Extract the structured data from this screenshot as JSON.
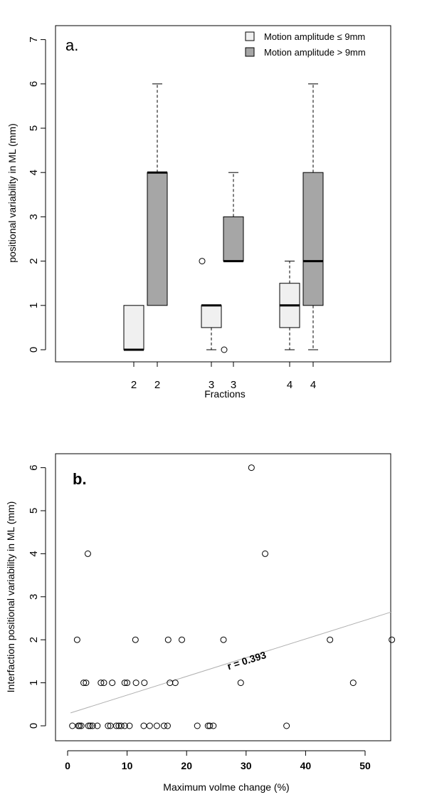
{
  "chart_data": [
    {
      "type": "box",
      "panel_label": "a.",
      "ylabel": "positional variability in ML (mm)",
      "xlabel": "Fractions",
      "ylim": [
        0,
        7
      ],
      "yticks": [
        "0",
        "1",
        "2",
        "3",
        "4",
        "5",
        "6",
        "7"
      ],
      "legend_position": "top-right",
      "series": [
        {
          "name": "Motion amplitude ≤ 9mm",
          "color": "#f0f0f0"
        },
        {
          "name": "Motion amplitude > 9mm",
          "color": "#a6a6a6"
        }
      ],
      "boxes": [
        {
          "label": "2",
          "series": 0,
          "whisker_low": 0,
          "q1": 0,
          "median": 0,
          "q3": 1,
          "whisker_high": 1,
          "outliers": []
        },
        {
          "label": "2",
          "series": 1,
          "whisker_low": 1,
          "q1": 1,
          "median": 4,
          "q3": 4,
          "whisker_high": 6,
          "outliers": []
        },
        {
          "label": "3",
          "series": 0,
          "whisker_low": 0,
          "q1": 0.5,
          "median": 1,
          "q3": 1,
          "whisker_high": 1,
          "outliers": [
            2
          ]
        },
        {
          "label": "3",
          "series": 1,
          "whisker_low": 2,
          "q1": 2,
          "median": 2,
          "q3": 3,
          "whisker_high": 4,
          "outliers": [
            0
          ]
        },
        {
          "label": "4",
          "series": 0,
          "whisker_low": 0,
          "q1": 0.5,
          "median": 1,
          "q3": 1.5,
          "whisker_high": 2,
          "outliers": []
        },
        {
          "label": "4",
          "series": 1,
          "whisker_low": 0,
          "q1": 1,
          "median": 2,
          "q3": 4,
          "whisker_high": 6,
          "outliers": []
        }
      ]
    },
    {
      "type": "scatter",
      "panel_label": "b.",
      "ylabel": "Interfaction positional variability in ML (mm)",
      "xlabel": "Maximum volme change (%)",
      "xlim": [
        0,
        55
      ],
      "ylim": [
        0,
        6
      ],
      "xticks": [
        "0",
        "10",
        "20",
        "30",
        "40",
        "50"
      ],
      "yticks": [
        "0",
        "1",
        "2",
        "3",
        "4",
        "5",
        "6"
      ],
      "annotation": "r = 0.393",
      "trend_line": {
        "x": [
          0.5,
          54.5
        ],
        "y": [
          0.3,
          2.65
        ],
        "color": "#b0b0b0"
      },
      "points": [
        [
          0.8,
          0
        ],
        [
          1.8,
          0
        ],
        [
          2.0,
          0
        ],
        [
          2.3,
          0
        ],
        [
          3.5,
          0
        ],
        [
          3.8,
          0
        ],
        [
          4.2,
          0
        ],
        [
          5.0,
          0
        ],
        [
          6.8,
          0
        ],
        [
          7.2,
          0
        ],
        [
          8.2,
          0
        ],
        [
          8.6,
          0
        ],
        [
          9.0,
          0
        ],
        [
          9.6,
          0
        ],
        [
          10.4,
          0
        ],
        [
          12.8,
          0
        ],
        [
          13.8,
          0
        ],
        [
          15.0,
          0
        ],
        [
          16.2,
          0
        ],
        [
          16.8,
          0
        ],
        [
          21.8,
          0
        ],
        [
          23.6,
          0
        ],
        [
          23.9,
          0
        ],
        [
          24.5,
          0
        ],
        [
          36.8,
          0
        ],
        [
          2.7,
          1
        ],
        [
          3.1,
          1
        ],
        [
          5.6,
          1
        ],
        [
          6.1,
          1
        ],
        [
          7.5,
          1
        ],
        [
          9.6,
          1
        ],
        [
          10.0,
          1
        ],
        [
          11.5,
          1
        ],
        [
          12.9,
          1
        ],
        [
          17.2,
          1
        ],
        [
          18.1,
          1
        ],
        [
          29.1,
          1
        ],
        [
          48.0,
          1
        ],
        [
          1.6,
          2
        ],
        [
          11.4,
          2
        ],
        [
          16.9,
          2
        ],
        [
          19.2,
          2
        ],
        [
          26.2,
          2
        ],
        [
          44.1,
          2
        ],
        [
          54.5,
          2
        ],
        [
          3.4,
          4
        ],
        [
          33.2,
          4
        ],
        [
          30.9,
          6
        ]
      ]
    }
  ]
}
